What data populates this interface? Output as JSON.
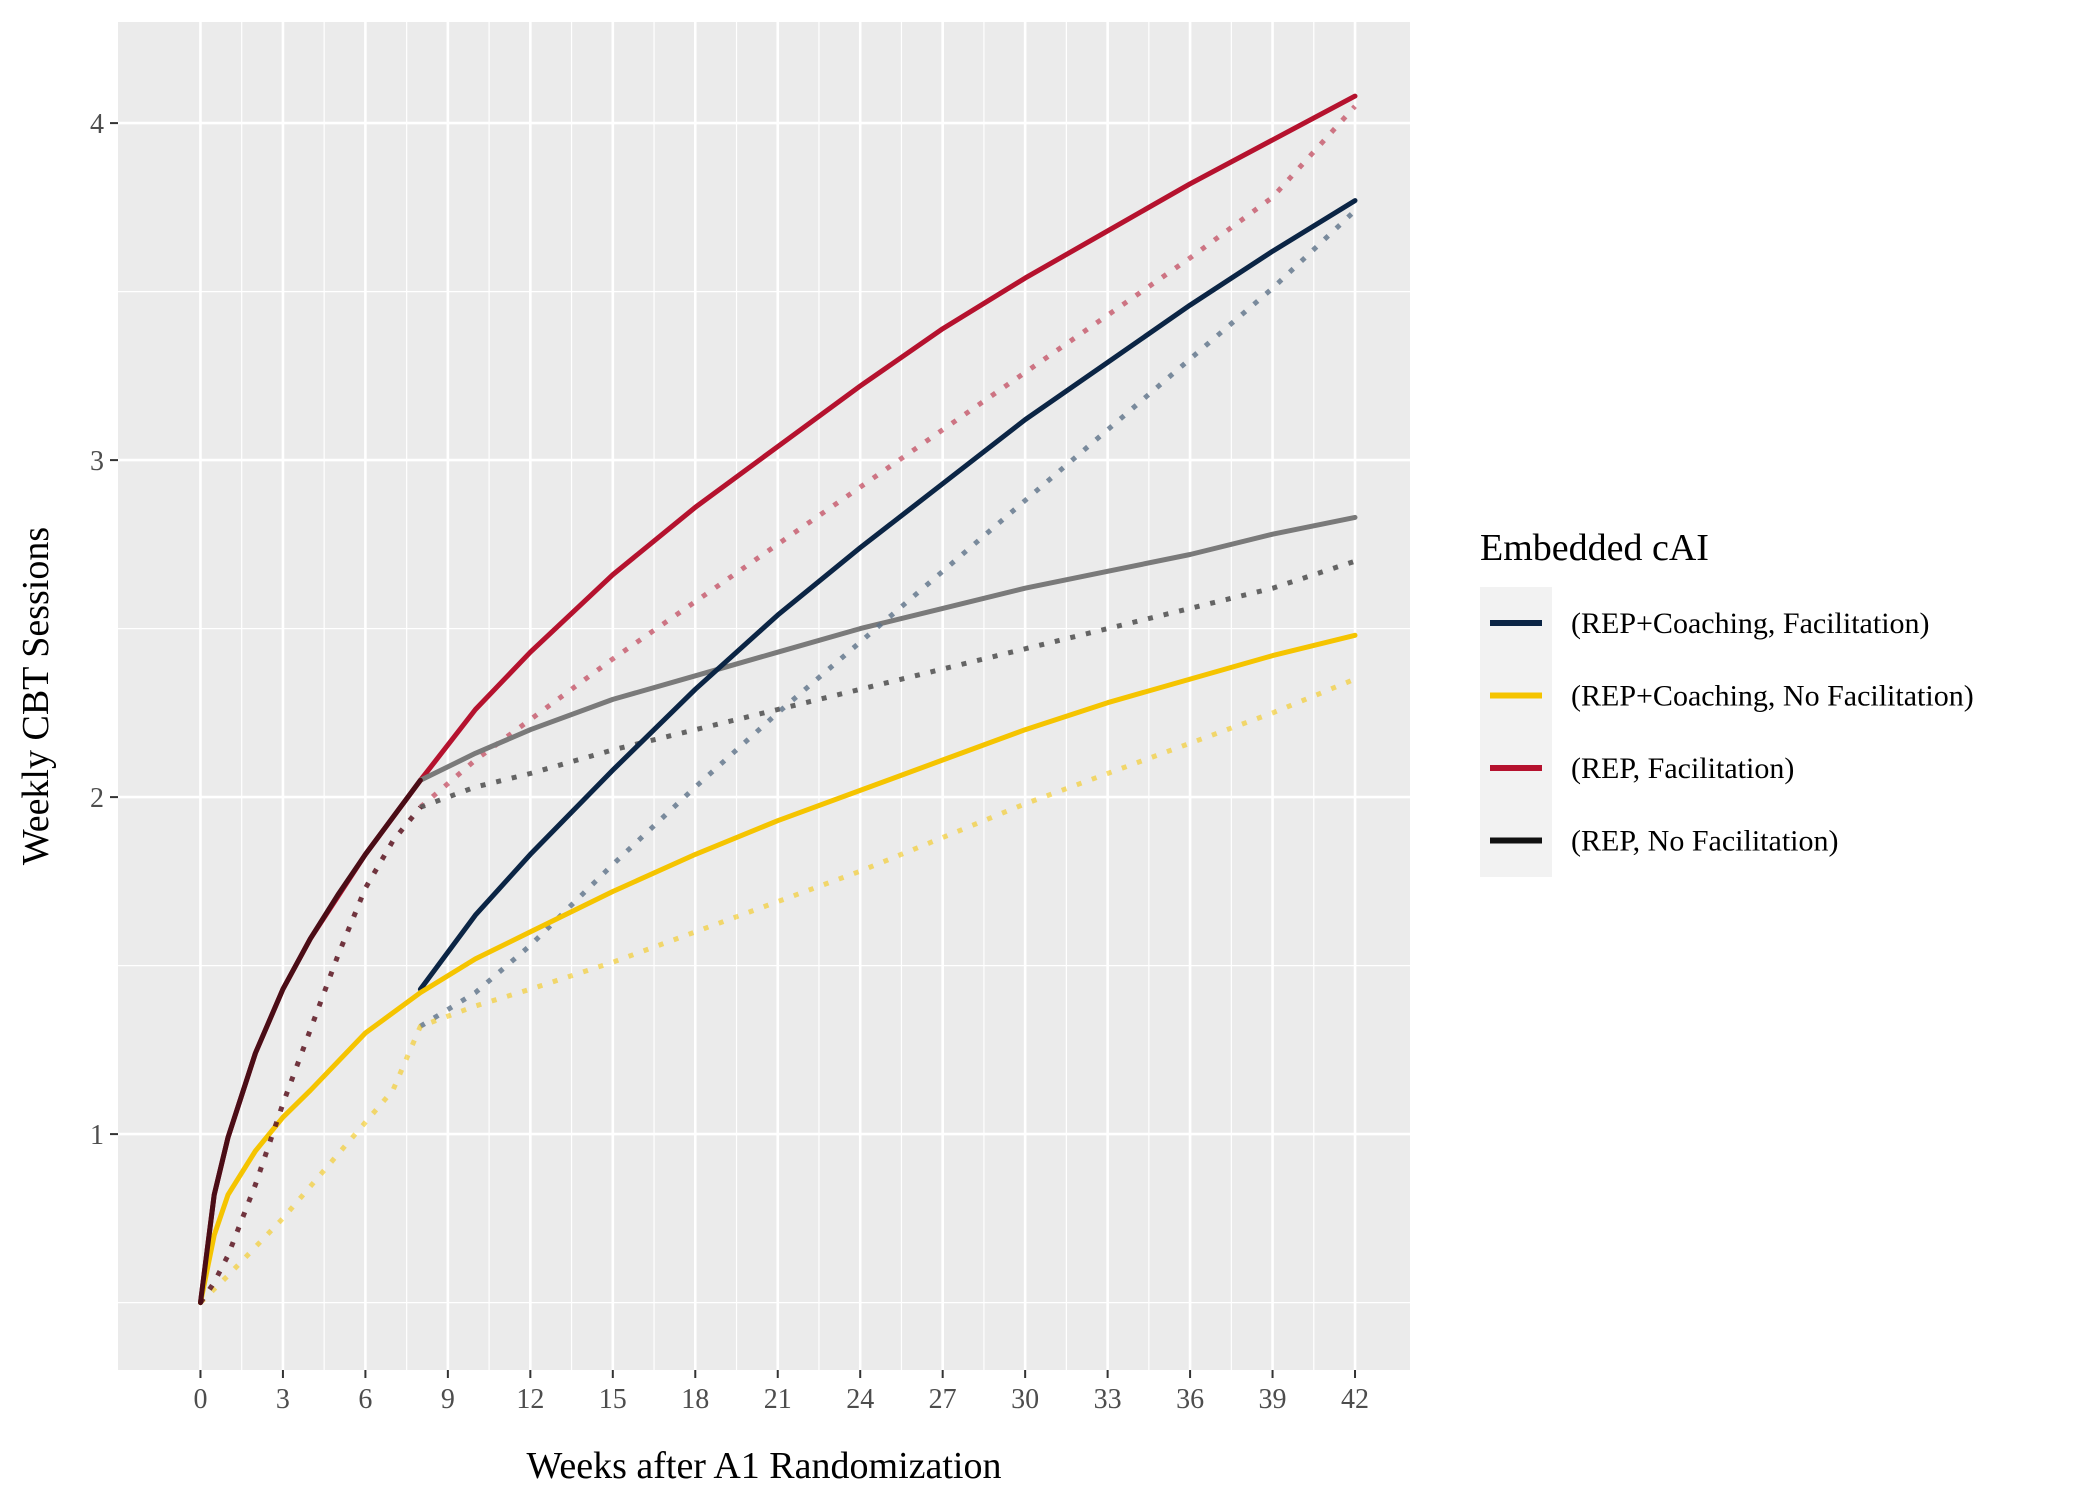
{
  "chart_data": {
    "type": "line",
    "xlabel": "Weeks after A1 Randomization",
    "ylabel": "Weekly CBT Sessions",
    "xlim": [
      -3,
      44
    ],
    "ylim": [
      0.3,
      4.3
    ],
    "xticks": [
      0,
      3,
      6,
      9,
      12,
      15,
      18,
      21,
      24,
      27,
      30,
      33,
      36,
      39,
      42
    ],
    "yticks": [
      1,
      2,
      3,
      4
    ],
    "grid": true,
    "legend": {
      "title": "Embedded cAI",
      "position": "right",
      "entries": [
        {
          "label": "(REP+Coaching, Facilitation)",
          "color": "#0b2545"
        },
        {
          "label": "(REP+Coaching, No Facilitation)",
          "color": "#f5c400"
        },
        {
          "label": "(REP, Facilitation)",
          "color": "#b5122e"
        },
        {
          "label": "(REP, No Facilitation)",
          "color": "#111111"
        }
      ]
    },
    "series": [
      {
        "name": "REP, Facilitation (solid)",
        "color": "#b5122e",
        "style": "solid",
        "opacity": 1,
        "x": [
          0,
          0.5,
          1,
          2,
          3,
          4,
          6,
          8,
          10,
          12,
          15,
          18,
          21,
          24,
          27,
          30,
          33,
          36,
          39,
          42
        ],
        "y": [
          0.5,
          0.82,
          0.99,
          1.24,
          1.43,
          1.58,
          1.83,
          2.05,
          2.26,
          2.43,
          2.66,
          2.86,
          3.04,
          3.22,
          3.39,
          3.54,
          3.68,
          3.82,
          3.95,
          4.08
        ]
      },
      {
        "name": "REP, Facilitation (dotted)",
        "color": "#b5122e",
        "style": "dotted",
        "opacity": 0.55,
        "x": [
          8,
          10,
          12,
          15,
          18,
          21,
          24,
          27,
          30,
          33,
          36,
          39,
          42
        ],
        "y": [
          1.97,
          2.11,
          2.23,
          2.41,
          2.58,
          2.75,
          2.92,
          3.09,
          3.26,
          3.43,
          3.6,
          3.78,
          4.05
        ]
      },
      {
        "name": "REP, No Facilitation (solid)",
        "color": "#7a7a7a",
        "style": "solid",
        "opacity": 1,
        "x": [
          8,
          10,
          12,
          15,
          18,
          21,
          24,
          27,
          30,
          33,
          36,
          39,
          42
        ],
        "y": [
          2.05,
          2.13,
          2.2,
          2.29,
          2.36,
          2.43,
          2.5,
          2.56,
          2.62,
          2.67,
          2.72,
          2.78,
          2.83
        ]
      },
      {
        "name": "REP, No Facilitation (dotted)",
        "color": "#555555",
        "style": "dotted",
        "opacity": 0.9,
        "x": [
          8,
          10,
          12,
          15,
          18,
          21,
          24,
          27,
          30,
          33,
          36,
          39,
          42
        ],
        "y": [
          1.97,
          2.03,
          2.07,
          2.14,
          2.2,
          2.26,
          2.32,
          2.38,
          2.44,
          2.5,
          2.56,
          2.62,
          2.7
        ]
      },
      {
        "name": "REP+Coaching, Facilitation (solid)",
        "color": "#0b2545",
        "style": "solid",
        "opacity": 1,
        "x": [
          8,
          10,
          12,
          15,
          18,
          21,
          24,
          27,
          30,
          33,
          36,
          39,
          42
        ],
        "y": [
          1.43,
          1.65,
          1.83,
          2.08,
          2.32,
          2.54,
          2.74,
          2.93,
          3.12,
          3.29,
          3.46,
          3.62,
          3.77
        ]
      },
      {
        "name": "REP+Coaching, Facilitation (dotted)",
        "color": "#5c7288",
        "style": "dotted",
        "opacity": 0.8,
        "x": [
          8,
          10,
          12,
          15,
          18,
          21,
          24,
          27,
          30,
          33,
          36,
          39,
          42
        ],
        "y": [
          1.32,
          1.42,
          1.56,
          1.8,
          2.03,
          2.25,
          2.46,
          2.67,
          2.88,
          3.09,
          3.3,
          3.51,
          3.74
        ]
      },
      {
        "name": "REP+Coaching, No Facilitation (solid)",
        "color": "#f5c400",
        "style": "solid",
        "opacity": 1,
        "x": [
          0,
          0.5,
          1,
          2,
          3,
          4,
          6,
          8,
          10,
          12,
          15,
          18,
          21,
          24,
          27,
          30,
          33,
          36,
          39,
          42
        ],
        "y": [
          0.5,
          0.7,
          0.82,
          0.95,
          1.05,
          1.13,
          1.3,
          1.42,
          1.52,
          1.6,
          1.72,
          1.83,
          1.93,
          2.02,
          2.11,
          2.2,
          2.28,
          2.35,
          2.42,
          2.48
        ]
      },
      {
        "name": "REP+Coaching, No Facilitation (dotted)",
        "color": "#f5c400",
        "style": "dotted",
        "opacity": 0.55,
        "x": [
          0,
          1,
          3,
          5,
          7,
          8,
          10,
          12,
          15,
          18,
          21,
          24,
          27,
          30,
          33,
          36,
          39,
          42
        ],
        "y": [
          0.5,
          0.58,
          0.75,
          0.94,
          1.13,
          1.32,
          1.38,
          1.43,
          1.51,
          1.6,
          1.69,
          1.78,
          1.88,
          1.98,
          2.07,
          2.16,
          2.25,
          2.35
        ]
      },
      {
        "name": "Shared early (dotted, 0-8 wk)",
        "color": "#5a1420",
        "style": "dotted",
        "opacity": 0.85,
        "x": [
          0,
          0.5,
          1,
          2,
          3,
          4,
          5,
          6,
          7,
          8
        ],
        "y": [
          0.5,
          0.56,
          0.64,
          0.85,
          1.09,
          1.31,
          1.53,
          1.73,
          1.87,
          1.97
        ]
      },
      {
        "name": "Shared early (solid, 0-8 wk)",
        "color": "#4a0d16",
        "style": "solid",
        "opacity": 1,
        "x": [
          0,
          0.5,
          1,
          2,
          3,
          4,
          5,
          6,
          7,
          8
        ],
        "y": [
          0.5,
          0.82,
          0.99,
          1.24,
          1.43,
          1.58,
          1.71,
          1.83,
          1.94,
          2.05
        ]
      }
    ]
  }
}
